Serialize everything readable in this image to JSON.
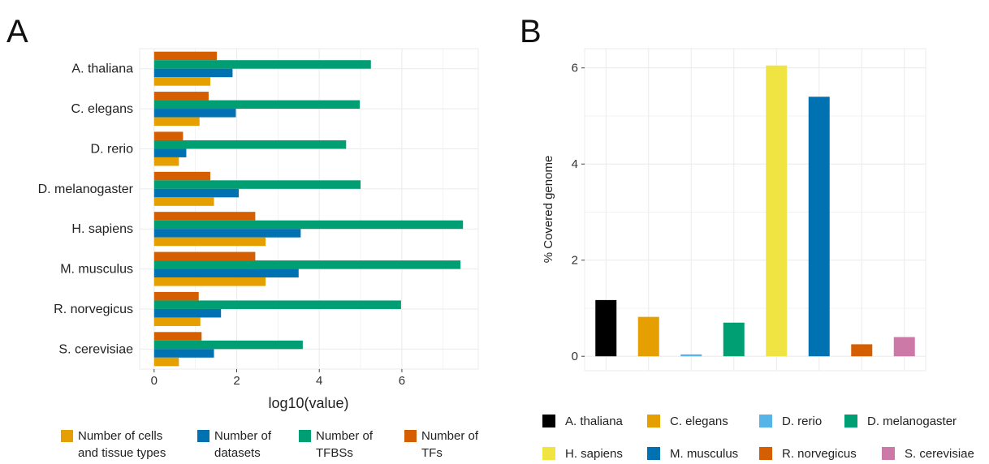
{
  "panels": {
    "a_letter": "A",
    "b_letter": "B"
  },
  "chart_data": [
    {
      "type": "bar",
      "orientation": "horizontal",
      "categories": [
        "A. thaliana",
        "C. elegans",
        "D. rerio",
        "D. melanogaster",
        "H. sapiens",
        "M. musculus",
        "R. norvegicus",
        "S. cerevisiae"
      ],
      "series": [
        {
          "name": "Number of TFs",
          "color": "#D55E00",
          "values": [
            1.52,
            1.32,
            0.7,
            1.36,
            2.45,
            2.45,
            1.08,
            1.15
          ]
        },
        {
          "name": "Number of TFBSs",
          "color": "#009E73",
          "values": [
            5.25,
            4.98,
            4.65,
            5.0,
            7.48,
            7.42,
            5.98,
            3.6
          ]
        },
        {
          "name": "Number of datasets",
          "color": "#0072B2",
          "values": [
            1.9,
            1.98,
            0.78,
            2.05,
            3.55,
            3.5,
            1.62,
            1.45
          ]
        },
        {
          "name": "Number of cells and tissue types",
          "color": "#E69F00",
          "values": [
            1.36,
            1.1,
            0.6,
            1.45,
            2.7,
            2.7,
            1.12,
            0.6
          ]
        }
      ],
      "xlabel": "log10(value)",
      "xlim": [
        -0.35,
        7.85
      ],
      "xticks": [
        0,
        2,
        4,
        6
      ],
      "grid": true,
      "legend_position": "bottom",
      "legend": [
        {
          "line1": "Number of cells",
          "line2": "and tissue types",
          "color": "#E69F00"
        },
        {
          "line1": "Number of",
          "line2": "datasets",
          "color": "#0072B2"
        },
        {
          "line1": "Number of",
          "line2": "TFBSs",
          "color": "#009E73"
        },
        {
          "line1": "Number of",
          "line2": "TFs",
          "color": "#D55E00"
        }
      ]
    },
    {
      "type": "bar",
      "orientation": "vertical",
      "categories": [
        "A. thaliana",
        "C. elegans",
        "D. rerio",
        "D. melanogaster",
        "H. sapiens",
        "M. musculus",
        "R. norvegicus",
        "S. cerevisiae"
      ],
      "values": [
        1.17,
        0.82,
        0.04,
        0.7,
        6.05,
        5.4,
        0.25,
        0.4
      ],
      "colors": [
        "#000000",
        "#E69F00",
        "#56B4E9",
        "#009E73",
        "#F0E442",
        "#0072B2",
        "#D55E00",
        "#CC79A7"
      ],
      "ylabel": "% Covered genome",
      "ylim": [
        -0.3,
        6.4
      ],
      "yticks": [
        0,
        2,
        4,
        6
      ],
      "grid": true,
      "legend_position": "bottom"
    }
  ]
}
